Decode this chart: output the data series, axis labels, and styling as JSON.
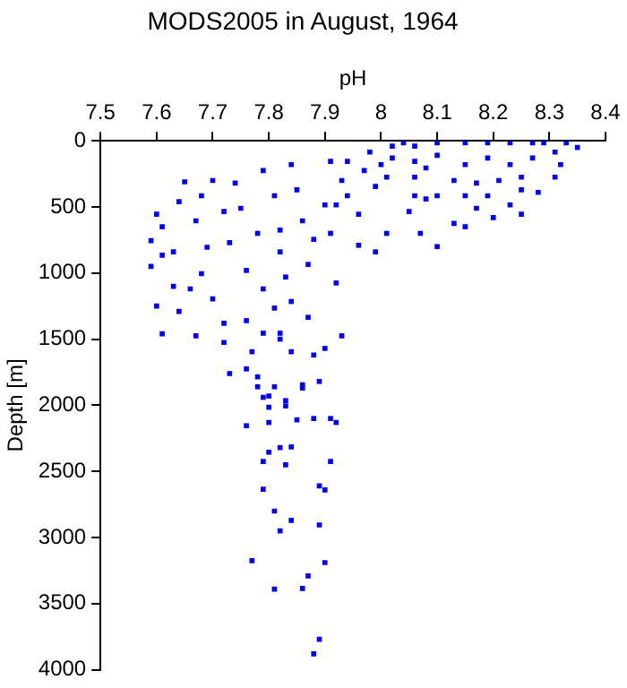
{
  "chart_data": {
    "type": "scatter",
    "title": "MODS2005 in August, 1964",
    "xlabel": "pH",
    "ylabel": "Depth [m]",
    "xlim": [
      7.5,
      8.4
    ],
    "xticks": [
      7.5,
      7.6,
      7.7,
      7.8,
      7.9,
      8,
      8.1,
      8.2,
      8.3,
      8.4
    ],
    "ylim": [
      4000,
      0
    ],
    "yticks": [
      0,
      500,
      1000,
      1500,
      2000,
      2500,
      3000,
      3500,
      4000
    ],
    "grid": false,
    "legend": false,
    "marker": "square",
    "series": [
      {
        "color": "#0000ff",
        "x": [
          7.78,
          7.81,
          7.86,
          7.79,
          7.8,
          7.8,
          7.83,
          7.83,
          7.76,
          7.8,
          7.85,
          7.88,
          7.91,
          7.92,
          7.82,
          7.84,
          7.8,
          7.79,
          7.83,
          7.91,
          7.79,
          7.89,
          7.9,
          7.81,
          7.84,
          7.82,
          7.89,
          7.77,
          7.9,
          7.87,
          7.81,
          7.86,
          7.89,
          7.88,
          7.59,
          7.59,
          7.6,
          7.61,
          7.6,
          7.61,
          7.65,
          7.64,
          7.61,
          7.63,
          7.63,
          7.64,
          7.67,
          7.66,
          7.68,
          7.67,
          7.68,
          7.7,
          7.69,
          7.7,
          7.72,
          7.73,
          7.72,
          7.73,
          7.72,
          7.74,
          7.75,
          7.76,
          7.76,
          7.77,
          7.76,
          7.78,
          7.79,
          7.78,
          7.79,
          7.79,
          7.81,
          7.81,
          7.82,
          7.82,
          7.83,
          7.82,
          7.82,
          7.84,
          7.84,
          7.84,
          7.86,
          7.87,
          7.86,
          7.85,
          7.87,
          7.88,
          7.88,
          7.89,
          7.9,
          7.91,
          7.9,
          7.91,
          7.92,
          7.93,
          7.94,
          7.93,
          7.92,
          7.96,
          7.99,
          7.94,
          7.96,
          7.98,
          8.01,
          8.01,
          8.02,
          7.99,
          8.05,
          8.07,
          8.1,
          8.08,
          8.06,
          8.13,
          8.15,
          8.17,
          8.2,
          8.23,
          8.25,
          8.28,
          8.25,
          8.31,
          8.32,
          8.31,
          8.33,
          8.35,
          8.04,
          8.06,
          8.1,
          8.15,
          8.19,
          8.23,
          8.27,
          8.29,
          8.06,
          8.1,
          8.15,
          8.19,
          8.23,
          8.27,
          8.13,
          8.17,
          8.21,
          8.25,
          8.08,
          8,
          7.97,
          8.02,
          8.19,
          8.15,
          8.1,
          8.06
        ],
        "values": [
          1860,
          1860,
          1845,
          1940,
          1930,
          2015,
          1965,
          2005,
          2155,
          2130,
          2110,
          2100,
          2100,
          2130,
          2320,
          2315,
          2355,
          2425,
          2450,
          2425,
          2635,
          2610,
          2640,
          2800,
          2870,
          2950,
          2905,
          3175,
          3190,
          3290,
          3390,
          3385,
          3770,
          3880,
          755,
          950,
          1250,
          1460,
          555,
          650,
          310,
          460,
          865,
          840,
          1100,
          1290,
          1475,
          1120,
          1005,
          605,
          415,
          300,
          805,
          1195,
          1525,
          1760,
          1380,
          770,
          535,
          320,
          510,
          980,
          1360,
          1595,
          1725,
          1785,
          225,
          700,
          1120,
          1455,
          1265,
          415,
          675,
          840,
          1030,
          1455,
          1500,
          180,
          1215,
          1595,
          1870,
          1335,
          605,
          370,
          935,
          1620,
          745,
          1820,
          1570,
          155,
          485,
          700,
          1075,
          1475,
          155,
          300,
          485,
          790,
          840,
          415,
          555,
          85,
          700,
          275,
          40,
          345,
          535,
          700,
          800,
          440,
          275,
          625,
          650,
          510,
          580,
          485,
          555,
          390,
          370,
          275,
          180,
          85,
          15,
          50,
          15,
          40,
          15,
          15,
          15,
          15,
          15,
          15,
          155,
          110,
          180,
          130,
          180,
          130,
          300,
          320,
          300,
          275,
          205,
          180,
          225,
          130,
          415,
          415,
          415,
          415
        ]
      }
    ]
  }
}
